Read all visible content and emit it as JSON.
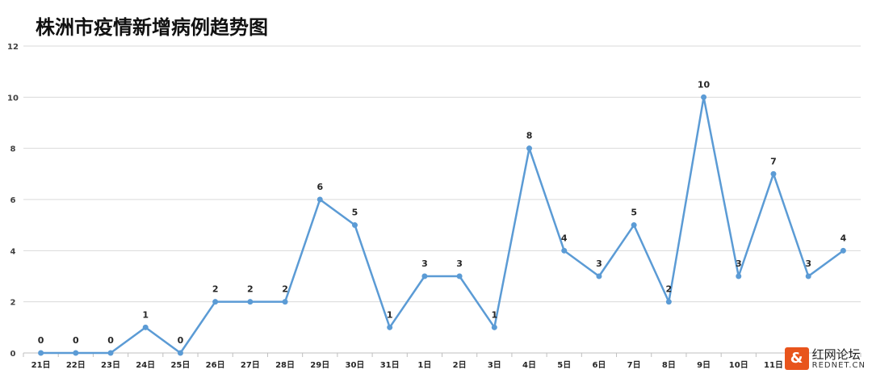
{
  "chart_data": {
    "type": "line",
    "title": "株洲市疫情新增病例趋势图",
    "categories": [
      "21日",
      "22日",
      "23日",
      "24日",
      "25日",
      "26日",
      "27日",
      "28日",
      "29日",
      "30日",
      "31日",
      "1日",
      "2日",
      "3日",
      "4日",
      "5日",
      "6日",
      "7日",
      "8日",
      "9日",
      "10日",
      "11日",
      "",
      ""
    ],
    "values": [
      0,
      0,
      0,
      1,
      0,
      2,
      2,
      2,
      6,
      5,
      1,
      3,
      3,
      1,
      8,
      4,
      3,
      5,
      2,
      10,
      3,
      7,
      3,
      4
    ],
    "ylim": [
      0,
      12
    ],
    "yticks": [
      0,
      2,
      4,
      6,
      8,
      10,
      12
    ],
    "grid": true,
    "legend": "none",
    "color": "#5b9bd5",
    "xlabel": "",
    "ylabel": ""
  },
  "watermark": {
    "name": "红网论坛",
    "site": "REDNET.CN"
  }
}
